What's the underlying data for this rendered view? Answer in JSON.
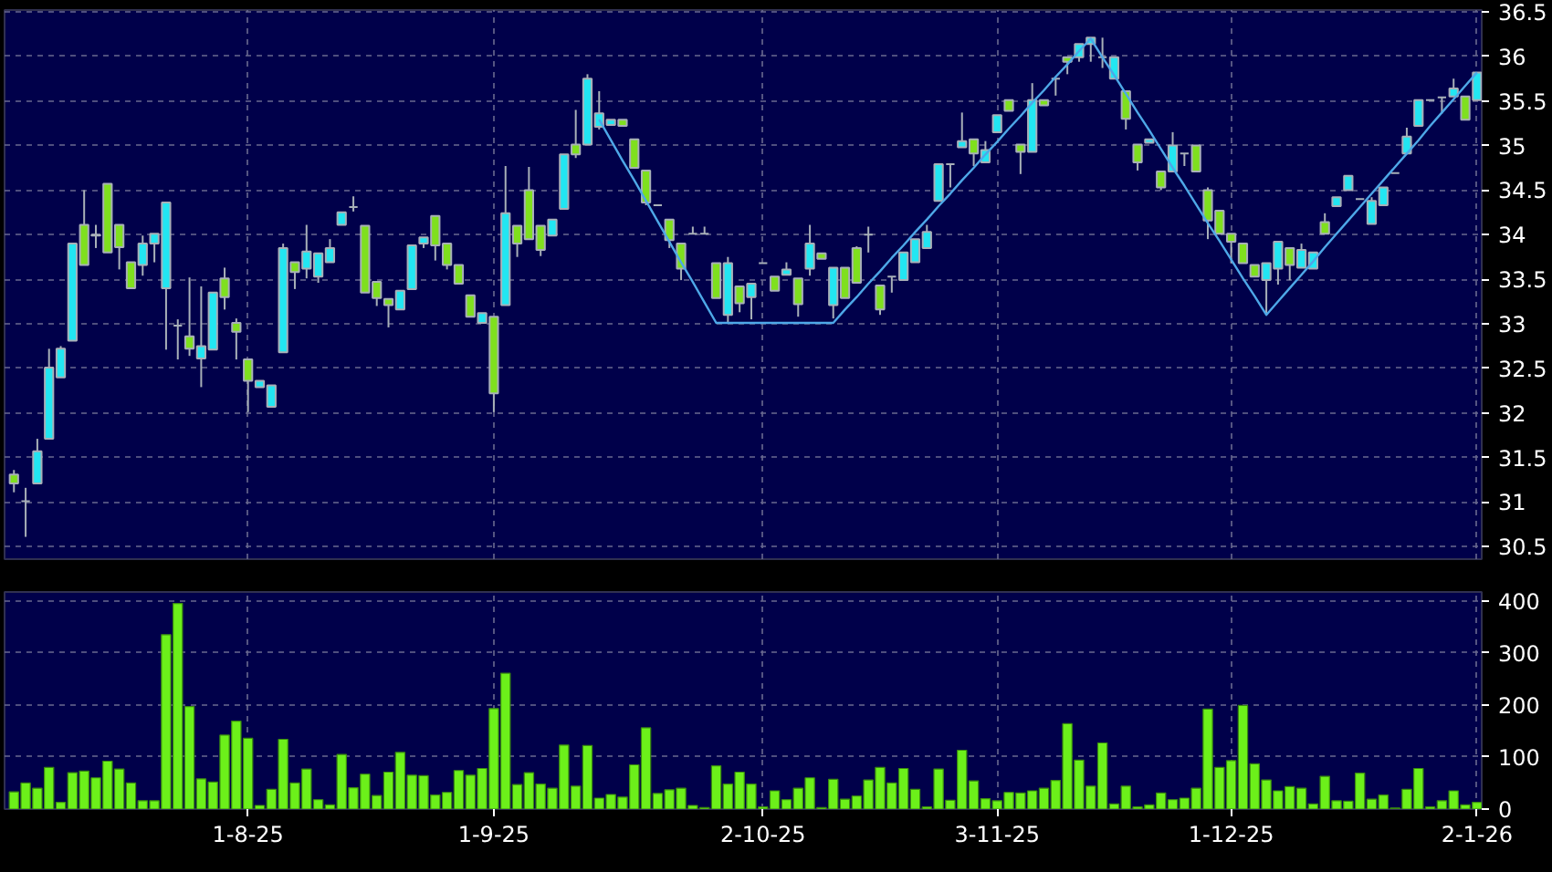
{
  "chart_data": [
    {
      "type": "candlestick",
      "categories": [
        null,
        null,
        null,
        null,
        null,
        null,
        null,
        null,
        null,
        null,
        null,
        null,
        null,
        null,
        null,
        null,
        null,
        null,
        null,
        null,
        null,
        null,
        null,
        null,
        null,
        null,
        null,
        null,
        null,
        null,
        null,
        null,
        null,
        null,
        null,
        null,
        null,
        null,
        null,
        null,
        null,
        null,
        null,
        null,
        null,
        null,
        null,
        null,
        null,
        null,
        null,
        null,
        null,
        null,
        null,
        null,
        null,
        null,
        null,
        null,
        null,
        null,
        null,
        null,
        null,
        null,
        null,
        null,
        null,
        null,
        null,
        null,
        null,
        null,
        null,
        null,
        null,
        null,
        null,
        null,
        null,
        null,
        null,
        null,
        null,
        null,
        null,
        null,
        null,
        null,
        null,
        null,
        null,
        null,
        null,
        null,
        null,
        null,
        null,
        null,
        null,
        null,
        null,
        null,
        null,
        null,
        null,
        null,
        null,
        null,
        null,
        null,
        null,
        null,
        null,
        null,
        null,
        null,
        null,
        null,
        null,
        null,
        null,
        null,
        null,
        null
      ],
      "ohlc": [
        [
          31.31,
          31.36,
          31.11,
          31.21
        ],
        [
          31.01,
          31.16,
          30.61,
          31.01
        ],
        [
          31.21,
          31.71,
          31.21,
          31.57
        ],
        [
          31.71,
          32.72,
          31.71,
          32.51
        ],
        [
          32.4,
          32.75,
          32.4,
          32.72
        ],
        [
          32.81,
          33.9,
          32.81,
          33.9
        ],
        [
          34.11,
          34.5,
          33.66,
          33.66
        ],
        [
          34.0,
          34.11,
          33.85,
          33.99
        ],
        [
          34.57,
          34.57,
          33.8,
          33.8
        ],
        [
          34.11,
          34.11,
          33.61,
          33.86
        ],
        [
          33.69,
          33.69,
          33.4,
          33.4
        ],
        [
          33.66,
          33.99,
          33.54,
          33.9
        ],
        [
          33.9,
          34.01,
          33.69,
          34.01
        ],
        [
          33.4,
          34.36,
          32.71,
          34.36
        ],
        [
          32.98,
          33.05,
          32.6,
          32.98
        ],
        [
          32.86,
          33.52,
          32.64,
          32.72
        ],
        [
          32.61,
          33.42,
          32.29,
          32.75
        ],
        [
          32.71,
          33.35,
          32.71,
          33.35
        ],
        [
          33.51,
          33.63,
          33.16,
          33.3
        ],
        [
          33.01,
          33.06,
          32.6,
          32.91
        ],
        [
          32.6,
          32.6,
          32.01,
          32.36
        ],
        [
          32.29,
          32.36,
          32.29,
          32.36
        ],
        [
          32.07,
          32.31,
          32.07,
          32.31
        ],
        [
          32.68,
          33.9,
          32.68,
          33.85
        ],
        [
          33.69,
          33.69,
          33.39,
          33.58
        ],
        [
          33.62,
          34.11,
          33.51,
          33.81
        ],
        [
          33.53,
          33.79,
          33.46,
          33.79
        ],
        [
          33.69,
          33.95,
          33.69,
          33.85
        ],
        [
          34.11,
          34.25,
          34.11,
          34.25
        ],
        [
          34.31,
          34.43,
          34.26,
          34.31
        ],
        [
          34.1,
          34.1,
          33.35,
          33.35
        ],
        [
          33.47,
          33.47,
          33.2,
          33.29
        ],
        [
          33.28,
          33.28,
          32.96,
          33.21
        ],
        [
          33.16,
          33.37,
          33.16,
          33.37
        ],
        [
          33.39,
          33.88,
          33.39,
          33.88
        ],
        [
          33.9,
          33.97,
          33.85,
          33.97
        ],
        [
          34.21,
          34.21,
          33.71,
          33.88
        ],
        [
          33.9,
          33.9,
          33.61,
          33.66
        ],
        [
          33.66,
          33.66,
          33.45,
          33.45
        ],
        [
          33.32,
          33.32,
          33.08,
          33.08
        ],
        [
          33.01,
          33.12,
          33.01,
          33.12
        ],
        [
          33.08,
          33.08,
          32.01,
          32.22
        ],
        [
          33.21,
          34.77,
          33.21,
          34.24
        ],
        [
          34.1,
          34.1,
          33.75,
          33.9
        ],
        [
          34.5,
          34.76,
          33.95,
          33.95
        ],
        [
          34.1,
          34.1,
          33.76,
          33.83
        ],
        [
          33.99,
          34.17,
          33.99,
          34.17
        ],
        [
          34.29,
          34.9,
          34.29,
          34.9
        ],
        [
          35.01,
          35.4,
          34.86,
          34.9
        ],
        [
          35.01,
          35.8,
          35.01,
          35.75
        ],
        [
          35.21,
          35.61,
          35.18,
          35.36
        ],
        [
          35.23,
          35.29,
          35.23,
          35.29
        ],
        [
          35.29,
          35.29,
          35.22,
          35.22
        ],
        [
          35.07,
          35.07,
          34.75,
          34.75
        ],
        [
          34.72,
          34.72,
          34.33,
          34.36
        ],
        [
          34.33,
          34.33,
          34.33,
          34.33
        ],
        [
          34.17,
          34.17,
          33.85,
          33.94
        ],
        [
          33.9,
          33.9,
          33.49,
          33.62
        ],
        [
          34.01,
          34.09,
          34.01,
          34.01
        ],
        [
          34.01,
          34.09,
          34.01,
          34.01
        ],
        [
          33.68,
          33.68,
          33.29,
          33.29
        ],
        [
          33.1,
          33.75,
          33.01,
          33.68
        ],
        [
          33.42,
          33.42,
          33.13,
          33.23
        ],
        [
          33.3,
          33.45,
          33.05,
          33.45
        ],
        [
          33.68,
          33.68,
          33.68,
          33.68
        ],
        [
          33.53,
          33.53,
          33.37,
          33.37
        ],
        [
          33.55,
          33.69,
          33.55,
          33.61
        ],
        [
          33.51,
          33.51,
          33.08,
          33.22
        ],
        [
          33.62,
          34.11,
          33.54,
          33.9
        ],
        [
          33.79,
          33.79,
          33.73,
          33.73
        ],
        [
          33.21,
          33.63,
          33.06,
          33.63
        ],
        [
          33.63,
          33.63,
          33.29,
          33.29
        ],
        [
          33.85,
          33.87,
          33.46,
          33.46
        ],
        [
          34.0,
          34.09,
          33.8,
          34.0
        ],
        [
          33.43,
          33.43,
          33.1,
          33.16
        ],
        [
          33.53,
          33.53,
          33.35,
          33.53
        ],
        [
          33.49,
          33.8,
          33.49,
          33.8
        ],
        [
          33.69,
          33.95,
          33.69,
          33.95
        ],
        [
          33.85,
          34.11,
          33.85,
          34.03
        ],
        [
          34.38,
          34.79,
          34.38,
          34.79
        ],
        [
          34.79,
          34.79,
          34.53,
          34.79
        ],
        [
          34.98,
          35.37,
          34.98,
          35.05
        ],
        [
          35.07,
          35.07,
          34.77,
          34.91
        ],
        [
          34.81,
          35.05,
          34.81,
          34.95
        ],
        [
          35.15,
          35.34,
          35.15,
          35.34
        ],
        [
          35.51,
          35.51,
          35.39,
          35.39
        ],
        [
          35.01,
          35.01,
          34.68,
          34.93
        ],
        [
          34.93,
          35.7,
          34.93,
          35.51
        ],
        [
          35.51,
          35.51,
          35.45,
          35.45
        ],
        [
          35.75,
          35.75,
          35.56,
          35.75
        ],
        [
          35.99,
          35.99,
          35.8,
          35.94
        ],
        [
          35.99,
          36.14,
          35.94,
          36.14
        ],
        [
          36.14,
          36.21,
          35.94,
          36.21
        ],
        [
          35.99,
          36.21,
          35.87,
          35.99
        ],
        [
          35.75,
          35.99,
          35.75,
          35.99
        ],
        [
          35.61,
          35.61,
          35.18,
          35.3
        ],
        [
          35.01,
          35.01,
          34.72,
          34.81
        ],
        [
          35.03,
          35.07,
          35.03,
          35.07
        ],
        [
          34.71,
          34.71,
          34.5,
          34.53
        ],
        [
          34.71,
          35.15,
          34.71,
          35.0
        ],
        [
          34.91,
          34.91,
          34.77,
          34.91
        ],
        [
          35.0,
          35.0,
          34.71,
          34.71
        ],
        [
          34.5,
          34.53,
          33.95,
          34.16
        ],
        [
          34.27,
          34.27,
          34.01,
          34.01
        ],
        [
          34.01,
          34.01,
          33.68,
          33.92
        ],
        [
          33.9,
          33.9,
          33.68,
          33.68
        ],
        [
          33.66,
          33.66,
          33.53,
          33.53
        ],
        [
          33.49,
          33.68,
          33.1,
          33.68
        ],
        [
          33.62,
          33.92,
          33.44,
          33.92
        ],
        [
          33.85,
          33.85,
          33.49,
          33.66
        ],
        [
          33.63,
          33.9,
          33.63,
          33.83
        ],
        [
          33.62,
          33.8,
          33.62,
          33.8
        ],
        [
          34.14,
          34.24,
          34.01,
          34.01
        ],
        [
          34.32,
          34.42,
          34.32,
          34.42
        ],
        [
          34.5,
          34.66,
          34.5,
          34.66
        ],
        [
          34.4,
          34.4,
          34.4,
          34.4
        ],
        [
          34.12,
          34.42,
          34.12,
          34.38
        ],
        [
          34.33,
          34.53,
          34.33,
          34.53
        ],
        [
          34.69,
          34.69,
          34.69,
          34.69
        ],
        [
          34.91,
          35.2,
          34.91,
          35.1
        ],
        [
          35.22,
          35.51,
          35.22,
          35.51
        ],
        [
          35.51,
          35.51,
          35.51,
          35.51
        ],
        [
          35.54,
          35.54,
          35.36,
          35.54
        ],
        [
          35.55,
          35.75,
          35.55,
          35.64
        ],
        [
          35.55,
          35.55,
          35.29,
          35.29
        ],
        [
          35.51,
          35.82,
          35.51,
          35.82
        ]
      ],
      "series": [
        {
          "type": "line",
          "color": "#4ea8e8",
          "values": [
            null,
            null,
            null,
            null,
            null,
            null,
            null,
            null,
            null,
            null,
            null,
            null,
            null,
            null,
            null,
            null,
            null,
            null,
            null,
            null,
            null,
            null,
            null,
            null,
            null,
            null,
            null,
            null,
            null,
            null,
            null,
            null,
            null,
            null,
            null,
            null,
            null,
            null,
            null,
            null,
            null,
            null,
            null,
            null,
            null,
            null,
            null,
            null,
            null,
            null,
            35.29,
            35.06,
            34.83,
            34.61,
            34.38,
            34.15,
            33.92,
            33.69,
            33.47,
            33.24,
            33.01,
            33.01,
            33.01,
            33.01,
            33.01,
            33.01,
            33.01,
            33.01,
            33.01,
            33.01,
            33.01,
            33.16,
            33.3,
            33.45,
            33.59,
            33.74,
            33.88,
            34.03,
            34.17,
            34.32,
            34.46,
            34.61,
            34.75,
            34.9,
            35.04,
            35.19,
            35.33,
            35.48,
            35.62,
            35.77,
            35.91,
            36.06,
            36.2,
            35.99,
            35.79,
            35.58,
            35.37,
            35.17,
            34.96,
            34.75,
            34.55,
            34.34,
            34.13,
            33.93,
            33.72,
            33.51,
            33.31,
            33.1,
            33.25,
            33.4,
            33.55,
            33.7,
            33.86,
            34.01,
            34.16,
            34.31,
            34.46,
            34.61,
            34.76,
            34.91,
            35.06,
            35.22,
            35.37,
            35.52,
            35.67,
            35.82
          ]
        }
      ],
      "ylim": [
        30.36,
        36.52
      ],
      "yticks": [
        30.5,
        31,
        31.5,
        32,
        32.5,
        33,
        33.5,
        34,
        34.5,
        35,
        35.5,
        36,
        36.5
      ],
      "grid": true,
      "tick_labels": "y"
    },
    {
      "type": "bar",
      "categories": [
        null,
        null,
        null,
        null,
        null,
        null,
        null,
        null,
        null,
        null,
        null,
        null,
        null,
        null,
        null,
        null,
        null,
        null,
        null,
        null,
        "1-8-25",
        null,
        null,
        null,
        null,
        null,
        null,
        null,
        null,
        null,
        null,
        null,
        null,
        null,
        null,
        null,
        null,
        null,
        null,
        null,
        null,
        "1-9-25",
        null,
        null,
        null,
        null,
        null,
        null,
        null,
        null,
        null,
        null,
        null,
        null,
        null,
        null,
        null,
        null,
        null,
        null,
        null,
        null,
        null,
        null,
        "2-10-25",
        null,
        null,
        null,
        null,
        null,
        null,
        null,
        null,
        null,
        null,
        null,
        null,
        null,
        null,
        null,
        null,
        null,
        null,
        null,
        "3-11-25",
        null,
        null,
        null,
        null,
        null,
        null,
        null,
        null,
        null,
        null,
        null,
        null,
        null,
        null,
        null,
        null,
        null,
        null,
        null,
        "1-12-25",
        null,
        null,
        null,
        null,
        null,
        null,
        null,
        null,
        null,
        null,
        null,
        null,
        null,
        null,
        null,
        null,
        null,
        null,
        null,
        null,
        "2-1-26"
      ],
      "values": [
        33,
        50,
        40,
        80,
        13,
        70,
        73,
        60,
        92,
        77,
        50,
        16,
        16,
        335,
        395,
        197,
        58,
        52,
        142,
        169,
        136,
        7,
        38,
        134,
        50,
        77,
        18,
        8,
        105,
        41,
        67,
        26,
        71,
        109,
        65,
        64,
        27,
        32,
        74,
        65,
        78,
        193,
        261,
        47,
        70,
        48,
        40,
        123,
        44,
        122,
        21,
        28,
        23,
        85,
        156,
        30,
        37,
        40,
        7,
        3,
        83,
        48,
        71,
        48,
        4,
        35,
        18,
        40,
        60,
        3,
        57,
        19,
        25,
        56,
        80,
        50,
        78,
        38,
        4,
        77,
        17,
        113,
        54,
        20,
        16,
        32,
        31,
        35,
        40,
        55,
        164,
        94,
        44,
        127,
        10,
        44,
        4,
        8,
        31,
        18,
        21,
        40,
        192,
        80,
        93,
        199,
        87,
        56,
        35,
        43,
        40,
        10,
        63,
        16,
        15,
        69,
        19,
        27,
        2,
        38,
        78,
        4,
        16,
        35,
        8,
        13
      ],
      "color": "#6cf01a",
      "ylim": [
        0,
        417
      ],
      "yticks": [
        0,
        100,
        200,
        300,
        400
      ],
      "grid": true
    }
  ]
}
